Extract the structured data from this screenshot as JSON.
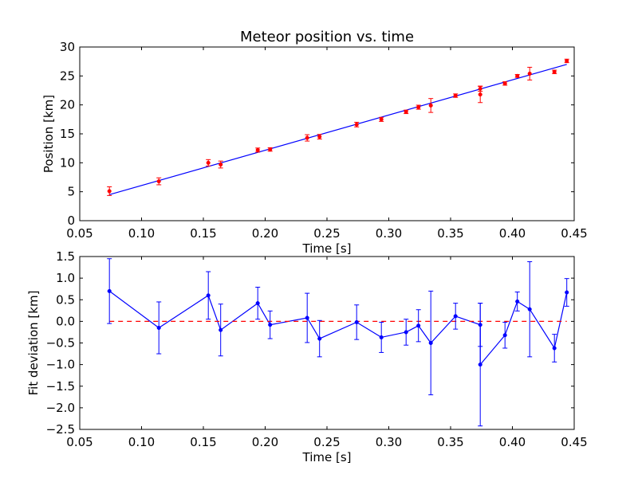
{
  "chart_data": [
    {
      "type": "scatter",
      "title": "Meteor position vs. time",
      "xlabel": "Time [s]",
      "ylabel": "Position [km]",
      "xlim": [
        0.05,
        0.45
      ],
      "ylim": [
        0,
        30
      ],
      "xticks": [
        "0.05",
        "0.10",
        "0.15",
        "0.20",
        "0.25",
        "0.30",
        "0.35",
        "0.40",
        "0.45"
      ],
      "yticks": [
        "0",
        "5",
        "10",
        "15",
        "20",
        "25",
        "30"
      ],
      "grid": false,
      "colors": {
        "points": "#ff0000",
        "fit": "#0000ff"
      },
      "series": [
        {
          "kind": "errorbar-points",
          "x": [
            0.074,
            0.114,
            0.154,
            0.164,
            0.194,
            0.204,
            0.234,
            0.244,
            0.274,
            0.294,
            0.314,
            0.324,
            0.334,
            0.354,
            0.374,
            0.374,
            0.394,
            0.404,
            0.414,
            0.434,
            0.444
          ],
          "y": [
            5.1,
            6.8,
            10.0,
            9.7,
            12.2,
            12.3,
            14.3,
            14.5,
            16.6,
            17.5,
            18.8,
            19.6,
            19.9,
            21.6,
            22.8,
            21.8,
            23.7,
            25.0,
            25.4,
            25.7,
            27.6
          ],
          "yerr": [
            0.75,
            0.6,
            0.55,
            0.6,
            0.35,
            0.3,
            0.55,
            0.4,
            0.4,
            0.35,
            0.3,
            0.35,
            1.2,
            0.3,
            0.45,
            1.4,
            0.3,
            0.25,
            1.1,
            0.3,
            0.3
          ]
        },
        {
          "kind": "fit-line",
          "x": [
            0.074,
            0.444
          ],
          "y": [
            4.5,
            27.0
          ]
        }
      ]
    },
    {
      "type": "line",
      "title": "",
      "xlabel": "Time [s]",
      "ylabel": "Fit deviation [km]",
      "xlim": [
        0.05,
        0.45
      ],
      "ylim": [
        -2.5,
        1.5
      ],
      "xticks": [
        "0.05",
        "0.10",
        "0.15",
        "0.20",
        "0.25",
        "0.30",
        "0.35",
        "0.40",
        "0.45"
      ],
      "yticks": [
        "1.5",
        "1.0",
        "0.5",
        "0.0",
        "−0.5",
        "−1.0",
        "−1.5",
        "−2.0",
        "−2.5"
      ],
      "grid": false,
      "colors": {
        "series": "#0000ff",
        "reference": "#ff0000"
      },
      "series": [
        {
          "kind": "errorbar-line",
          "x": [
            0.074,
            0.114,
            0.154,
            0.164,
            0.194,
            0.204,
            0.234,
            0.244,
            0.274,
            0.294,
            0.314,
            0.324,
            0.334,
            0.354,
            0.374,
            0.374,
            0.394,
            0.404,
            0.414,
            0.434,
            0.444
          ],
          "y": [
            0.7,
            -0.15,
            0.6,
            -0.2,
            0.42,
            -0.08,
            0.08,
            -0.4,
            -0.02,
            -0.37,
            -0.25,
            -0.1,
            -0.5,
            0.12,
            -0.08,
            -1.0,
            -0.32,
            0.46,
            0.28,
            -0.62,
            0.67
          ],
          "yerr": [
            0.75,
            0.6,
            0.55,
            0.6,
            0.37,
            0.32,
            0.57,
            0.42,
            0.4,
            0.35,
            0.3,
            0.37,
            1.2,
            0.3,
            0.5,
            1.42,
            0.3,
            0.22,
            1.1,
            0.32,
            0.32
          ]
        },
        {
          "kind": "reference-dashed",
          "x": [
            0.074,
            0.444
          ],
          "y": [
            0,
            0
          ]
        }
      ]
    }
  ]
}
